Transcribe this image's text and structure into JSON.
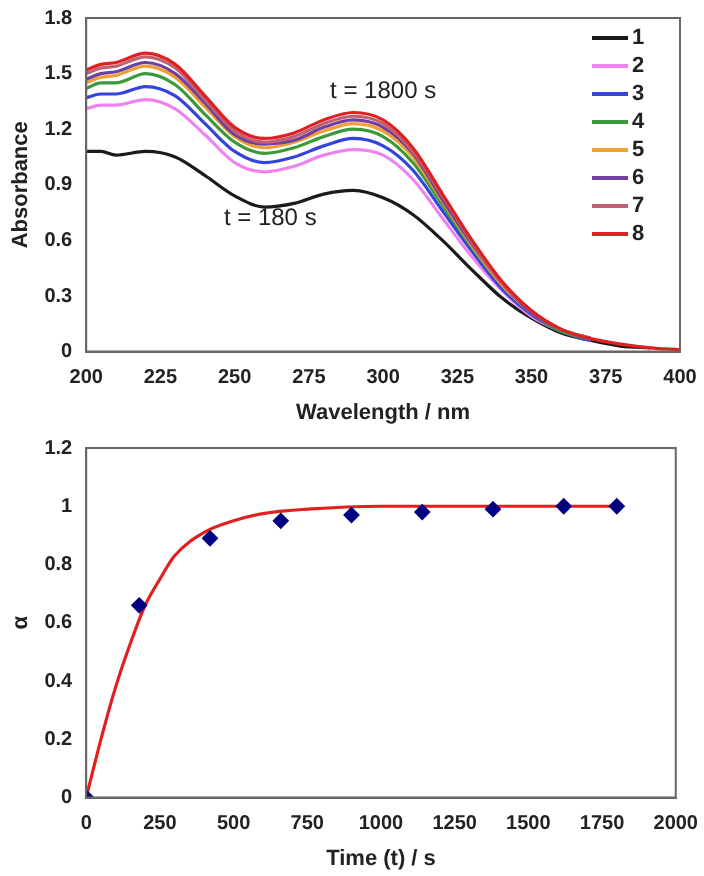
{
  "chart_data": [
    {
      "type": "line",
      "xlabel": "Wavelength / nm",
      "ylabel": "Absorbance",
      "legend": "top right",
      "x": [
        200,
        205,
        210,
        220,
        230,
        240,
        250,
        260,
        270,
        280,
        290,
        300,
        310,
        320,
        330,
        340,
        350,
        360,
        370,
        380,
        390,
        400
      ],
      "xlim": [
        200,
        400
      ],
      "xticks": [
        200,
        225,
        250,
        275,
        300,
        325,
        350,
        375,
        400
      ],
      "ylim": [
        0,
        1.8
      ],
      "yticks": [
        0,
        0.3,
        0.6,
        0.9,
        1.2,
        1.5,
        1.8
      ],
      "annotations": [
        "t = 1800 s",
        "t = 180 s"
      ],
      "series": [
        {
          "name": "1",
          "color": "#1a1a1a",
          "values": [
            1.08,
            1.08,
            1.06,
            1.08,
            1.05,
            0.95,
            0.84,
            0.78,
            0.8,
            0.85,
            0.87,
            0.83,
            0.74,
            0.6,
            0.44,
            0.29,
            0.18,
            0.1,
            0.06,
            0.03,
            0.02,
            null
          ]
        },
        {
          "name": "2",
          "color": "#ee82ee",
          "values": [
            1.31,
            1.33,
            1.33,
            1.36,
            1.31,
            1.17,
            1.02,
            0.97,
            1.0,
            1.06,
            1.09,
            1.06,
            0.93,
            0.72,
            0.51,
            0.33,
            0.19,
            0.11,
            0.06,
            null,
            null,
            null
          ]
        },
        {
          "name": "3",
          "color": "#3344dd",
          "values": [
            1.37,
            1.39,
            1.39,
            1.43,
            1.38,
            1.23,
            1.08,
            1.02,
            1.05,
            1.11,
            1.15,
            1.11,
            0.98,
            0.76,
            0.54,
            0.34,
            0.2,
            0.11,
            0.06,
            null,
            null,
            null
          ]
        },
        {
          "name": "4",
          "color": "#3a9a3a",
          "values": [
            1.42,
            1.45,
            1.45,
            1.5,
            1.44,
            1.28,
            1.13,
            1.07,
            1.1,
            1.16,
            1.2,
            1.16,
            1.02,
            0.79,
            0.56,
            0.36,
            0.21,
            0.11,
            0.07,
            null,
            null,
            null
          ]
        },
        {
          "name": "5",
          "color": "#f0a030",
          "values": [
            1.45,
            1.48,
            1.49,
            1.54,
            1.48,
            1.32,
            1.16,
            1.1,
            1.13,
            1.19,
            1.23,
            1.19,
            1.05,
            0.81,
            0.57,
            0.36,
            0.21,
            0.12,
            0.07,
            null,
            null,
            null
          ]
        },
        {
          "name": "6",
          "color": "#7040a0",
          "values": [
            1.47,
            1.5,
            1.51,
            1.56,
            1.5,
            1.34,
            1.17,
            1.12,
            1.14,
            1.21,
            1.25,
            1.21,
            1.07,
            0.82,
            0.58,
            0.37,
            0.21,
            0.12,
            0.07,
            null,
            null,
            null
          ]
        },
        {
          "name": "7",
          "color": "#c06070",
          "values": [
            1.5,
            1.53,
            1.54,
            1.59,
            1.53,
            1.36,
            1.19,
            1.13,
            1.16,
            1.23,
            1.27,
            1.23,
            1.08,
            0.84,
            0.59,
            0.37,
            0.22,
            0.12,
            0.07,
            null,
            null,
            null
          ]
        },
        {
          "name": "8",
          "color": "#e02020",
          "values": [
            1.52,
            1.55,
            1.56,
            1.61,
            1.55,
            1.38,
            1.21,
            1.15,
            1.18,
            1.25,
            1.29,
            1.25,
            1.1,
            0.85,
            0.6,
            0.38,
            0.22,
            0.12,
            0.07,
            0.04,
            0.02,
            0.01
          ]
        }
      ]
    },
    {
      "type": "scatter",
      "xlabel": "Time (t) / s",
      "ylabel": "α",
      "xlim": [
        0,
        2000
      ],
      "xticks": [
        0,
        250,
        500,
        750,
        1000,
        1250,
        1500,
        1750,
        2000
      ],
      "ylim": [
        0,
        1.2
      ],
      "yticks": [
        0,
        0.2,
        0.4,
        0.6,
        0.8,
        1,
        1.2
      ],
      "series": [
        {
          "type": "line",
          "color": "#e02020",
          "x": [
            0,
            50,
            100,
            150,
            200,
            250,
            300,
            400,
            500,
            600,
            750,
            1000,
            1800
          ],
          "values": [
            0,
            0.2,
            0.38,
            0.53,
            0.66,
            0.75,
            0.83,
            0.91,
            0.95,
            0.975,
            0.99,
            1.0,
            1.0
          ]
        },
        {
          "color": "#000080",
          "marker": "diamond",
          "x": [
            0,
            180,
            420,
            660,
            900,
            1140,
            1380,
            1620,
            1800
          ],
          "values": [
            0,
            0.66,
            0.89,
            0.95,
            0.97,
            0.98,
            0.99,
            1.0,
            1.0
          ]
        }
      ]
    }
  ]
}
